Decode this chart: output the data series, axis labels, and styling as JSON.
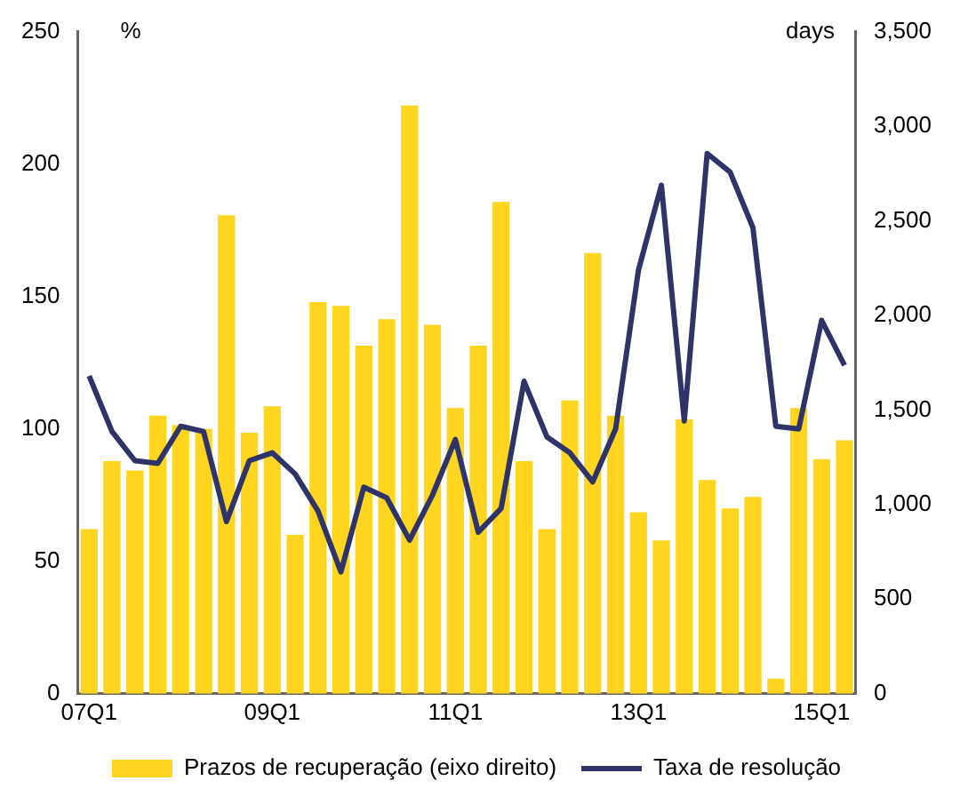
{
  "chart_data": {
    "type": "bar",
    "ylabel": "%",
    "y2label": "days",
    "categories": [
      "07Q1",
      null,
      null,
      null,
      null,
      null,
      null,
      null,
      "09Q1",
      null,
      null,
      null,
      null,
      null,
      null,
      null,
      "11Q1",
      null,
      null,
      null,
      null,
      null,
      null,
      null,
      "13Q1",
      null,
      null,
      null,
      null,
      null,
      null,
      null,
      "15Q1",
      null
    ],
    "series": [
      {
        "name": "Prazos de recuperação (eixo direito)",
        "axis": "y2",
        "color": "#ffd520",
        "values": [
          870,
          1230,
          1180,
          1470,
          1420,
          1400,
          2530,
          1380,
          1520,
          840,
          2070,
          2050,
          1840,
          1980,
          3110,
          1950,
          1510,
          1840,
          2600,
          1230,
          870,
          1550,
          2330,
          1470,
          960,
          810,
          1450,
          1130,
          980,
          1040,
          80,
          1510,
          1240,
          1340
        ]
      },
      {
        "name": "Taxa de resolução",
        "type": "line",
        "color": "#2e3468",
        "values": [
          120,
          99,
          88,
          87,
          101,
          99,
          65,
          88,
          91,
          83,
          69,
          46,
          78,
          74,
          58,
          75,
          96,
          61,
          70,
          118,
          97,
          91,
          80,
          100,
          160,
          192,
          103,
          204,
          197,
          176,
          101,
          100,
          141,
          124
        ]
      }
    ],
    "ylim": [
      0,
      250
    ],
    "yticks": [
      0,
      50,
      100,
      150,
      200,
      250
    ],
    "y2lim": [
      0,
      3500
    ],
    "y2ticks": [
      0,
      500,
      {
        "value": 1000,
        "label": "1,000"
      },
      {
        "value": 1500,
        "label": "1,500"
      },
      {
        "value": 2000,
        "label": "2,000"
      },
      {
        "value": 2500,
        "label": "2,500"
      },
      {
        "value": 3000,
        "label": "3,000"
      },
      {
        "value": 3500,
        "label": "3,500"
      }
    ],
    "grid": false,
    "legend": "bottom",
    "marker": "none",
    "line_style": "solid"
  }
}
